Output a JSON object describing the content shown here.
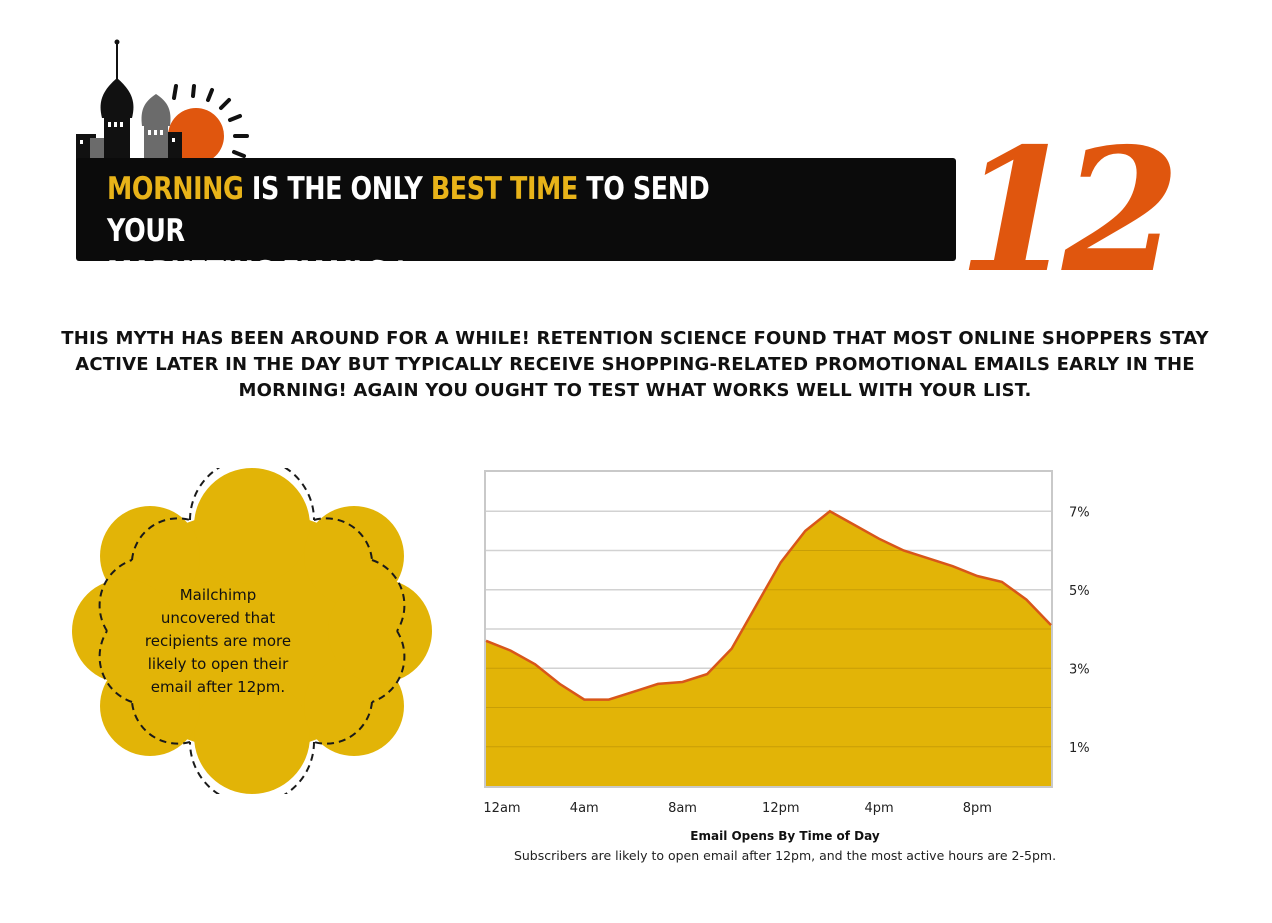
{
  "banner": {
    "word1": "MORNING",
    "text1": " IS THE ONLY ",
    "word2": "BEST TIME",
    "text2": " TO SEND YOUR",
    "line2": "MARKETING EMAILS !",
    "number": "12"
  },
  "intro": "THIS MYTH HAS BEEN AROUND FOR A WHILE! RETENTION SCIENCE FOUND THAT MOST ONLINE SHOPPERS STAY ACTIVE LATER IN THE DAY BUT TYPICALLY RECEIVE SHOPPING-RELATED PROMOTIONAL EMAILS EARLY IN THE MORNING! AGAIN YOU OUGHT TO TEST WHAT WORKS WELL WITH YOUR LIST.",
  "badge": {
    "text": "Mailchimp uncovered that recipients are more likely to open their email after 12pm."
  },
  "colors": {
    "accent_yellow": "#e8b319",
    "accent_orange": "#e0560e",
    "banner_bg": "#0b0b0b",
    "area_fill": "#e2b407",
    "line": "#d8561a"
  },
  "chart_data": {
    "type": "area",
    "title": "Email Opens By Time of Day",
    "subtitle": "Subscribers are likely to open email after 12pm, and the most active hours are 2-5pm.",
    "xlabel": "",
    "ylabel": "",
    "x_ticks": [
      "12am",
      "4am",
      "8am",
      "12pm",
      "4pm",
      "8pm"
    ],
    "x_tick_hours": [
      0,
      4,
      8,
      12,
      16,
      20
    ],
    "y_ticks": [
      "1%",
      "3%",
      "5%",
      "7%"
    ],
    "y_tick_values": [
      1,
      3,
      5,
      7
    ],
    "ylim": [
      0,
      8
    ],
    "xlim": [
      0,
      23
    ],
    "grid": true,
    "y_axis_side": "right",
    "series": [
      {
        "x": [
          0,
          1,
          2,
          3,
          4,
          5,
          6,
          7,
          8,
          9,
          10,
          11,
          12,
          13,
          14,
          15,
          16,
          17,
          18,
          19,
          20,
          21,
          22,
          23
        ],
        "values": [
          3.7,
          3.45,
          3.1,
          2.6,
          2.2,
          2.2,
          2.4,
          2.6,
          2.65,
          2.85,
          3.5,
          4.6,
          5.7,
          6.5,
          7.0,
          6.65,
          6.3,
          6.0,
          5.8,
          5.6,
          5.35,
          5.2,
          4.75,
          4.1
        ]
      }
    ]
  }
}
